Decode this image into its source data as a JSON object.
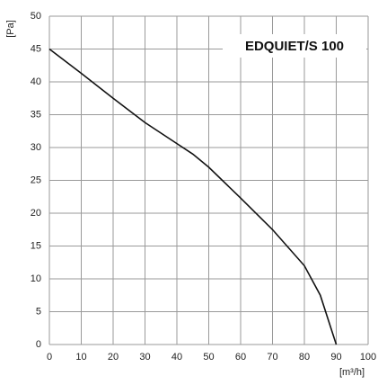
{
  "chart_data": {
    "type": "line",
    "title": "EDQUIET/S 100",
    "xlabel": "[m³/h]",
    "ylabel": "[Pa]",
    "x": [
      0,
      10,
      20,
      30,
      40,
      45,
      50,
      60,
      70,
      80,
      85,
      88,
      90
    ],
    "series": [
      {
        "name": "EDQUIET/S 100",
        "color": "#111111",
        "values": [
          45,
          41.3,
          37.5,
          33.8,
          30.6,
          29,
          27,
          22.3,
          17.5,
          12,
          7.5,
          3,
          0
        ]
      }
    ],
    "xlim": [
      0,
      100
    ],
    "xticks": [
      0,
      10,
      20,
      30,
      40,
      50,
      60,
      70,
      80,
      90,
      100
    ],
    "ylim": [
      0,
      50
    ],
    "yticks": [
      0,
      5,
      10,
      15,
      20,
      25,
      30,
      35,
      40,
      45,
      50
    ],
    "grid": true
  }
}
